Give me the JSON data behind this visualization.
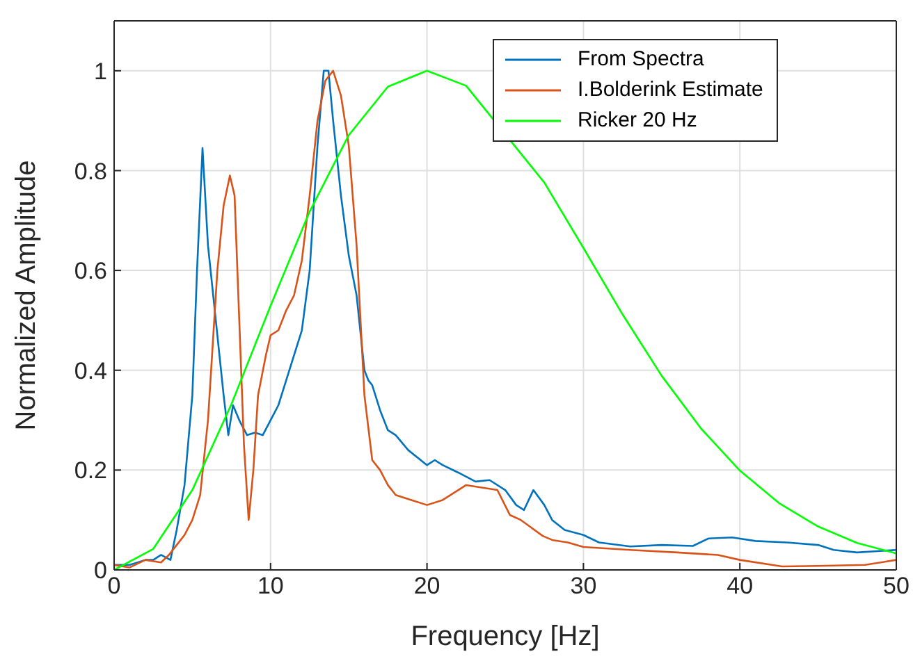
{
  "chart_data": {
    "type": "line",
    "xlabel": "Frequency [Hz]",
    "ylabel": "Normalized Amplitude",
    "xlim": [
      0,
      50
    ],
    "ylim": [
      0,
      1.1
    ],
    "xticks": [
      0,
      10,
      20,
      30,
      40,
      50
    ],
    "yticks": [
      0,
      0.2,
      0.4,
      0.6,
      0.8,
      1
    ],
    "grid": true,
    "legend": "top right",
    "marker": "none",
    "line_style": "solid",
    "series": [
      {
        "name": "From Spectra",
        "color": "#0072bd",
        "x": [
          0,
          1,
          2,
          2.5,
          3,
          3.6,
          4,
          4.5,
          5,
          5.3,
          5.65,
          6,
          6.5,
          7,
          7.3,
          7.6,
          8,
          8.5,
          9,
          9.5,
          10,
          10.5,
          11,
          11.5,
          12,
          12.5,
          13,
          13.4,
          13.7,
          14,
          14.5,
          15,
          15.5,
          16,
          16.25,
          16.5,
          17,
          17.5,
          18,
          18.8,
          20,
          20.5,
          21,
          22,
          23.1,
          24,
          25,
          25.7,
          26.2,
          26.8,
          27.5,
          28,
          28.8,
          30,
          31,
          33,
          35,
          37,
          38,
          39.5,
          41,
          43,
          45,
          46,
          47.5,
          50
        ],
        "values": [
          0.01,
          0.01,
          0.02,
          0.02,
          0.03,
          0.02,
          0.08,
          0.17,
          0.35,
          0.6,
          0.845,
          0.65,
          0.5,
          0.35,
          0.27,
          0.33,
          0.3,
          0.27,
          0.275,
          0.27,
          0.3,
          0.33,
          0.38,
          0.43,
          0.48,
          0.6,
          0.85,
          1,
          1,
          0.9,
          0.75,
          0.63,
          0.55,
          0.4,
          0.38,
          0.37,
          0.32,
          0.28,
          0.27,
          0.24,
          0.21,
          0.22,
          0.21,
          0.195,
          0.177,
          0.18,
          0.16,
          0.13,
          0.12,
          0.16,
          0.13,
          0.1,
          0.08,
          0.07,
          0.055,
          0.047,
          0.05,
          0.048,
          0.063,
          0.065,
          0.058,
          0.055,
          0.05,
          0.04,
          0.035,
          0.04
        ]
      },
      {
        "name": "I.Bolderink Estimate",
        "color": "#d95319",
        "x": [
          0,
          1,
          2,
          3,
          3.5,
          4,
          4.5,
          5,
          5.5,
          6,
          6.3,
          6.6,
          7,
          7.4,
          7.7,
          8,
          8.3,
          8.6,
          8.9,
          9.2,
          9.7,
          10,
          10.5,
          11,
          11.5,
          12,
          12.5,
          13,
          13.5,
          14,
          14.5,
          15,
          15.5,
          16,
          16.5,
          17,
          17.5,
          18,
          19,
          20,
          21,
          22,
          22.5,
          23.5,
          24.5,
          25.3,
          26,
          27.4,
          28,
          29,
          30,
          33,
          36,
          38.6,
          40,
          42.7,
          45,
          48,
          50
        ],
        "values": [
          0.01,
          0.005,
          0.02,
          0.015,
          0.03,
          0.05,
          0.07,
          0.1,
          0.15,
          0.3,
          0.45,
          0.6,
          0.73,
          0.79,
          0.75,
          0.5,
          0.25,
          0.1,
          0.2,
          0.35,
          0.43,
          0.47,
          0.48,
          0.52,
          0.55,
          0.62,
          0.75,
          0.9,
          0.98,
          1,
          0.95,
          0.85,
          0.65,
          0.35,
          0.22,
          0.2,
          0.17,
          0.15,
          0.14,
          0.13,
          0.14,
          0.16,
          0.17,
          0.165,
          0.16,
          0.11,
          0.1,
          0.068,
          0.06,
          0.055,
          0.046,
          0.04,
          0.035,
          0.03,
          0.02,
          0.007,
          0.008,
          0.01,
          0.02
        ]
      },
      {
        "name": "Ricker 20 Hz",
        "color": "#00ff00",
        "x": [
          0,
          2.5,
          5,
          7.5,
          10,
          12.5,
          15,
          17.5,
          20,
          22.5,
          25,
          27.5,
          30,
          32.5,
          35,
          37.5,
          40,
          42.5,
          45,
          47.5,
          50
        ],
        "values": [
          0,
          0.042,
          0.16,
          0.332,
          0.529,
          0.718,
          0.871,
          0.968,
          1,
          0.97,
          null,
          0.776,
          0.645,
          0.512,
          0.389,
          0.284,
          0.199,
          0.134,
          0.087,
          0.054,
          0.033
        ]
      }
    ]
  }
}
